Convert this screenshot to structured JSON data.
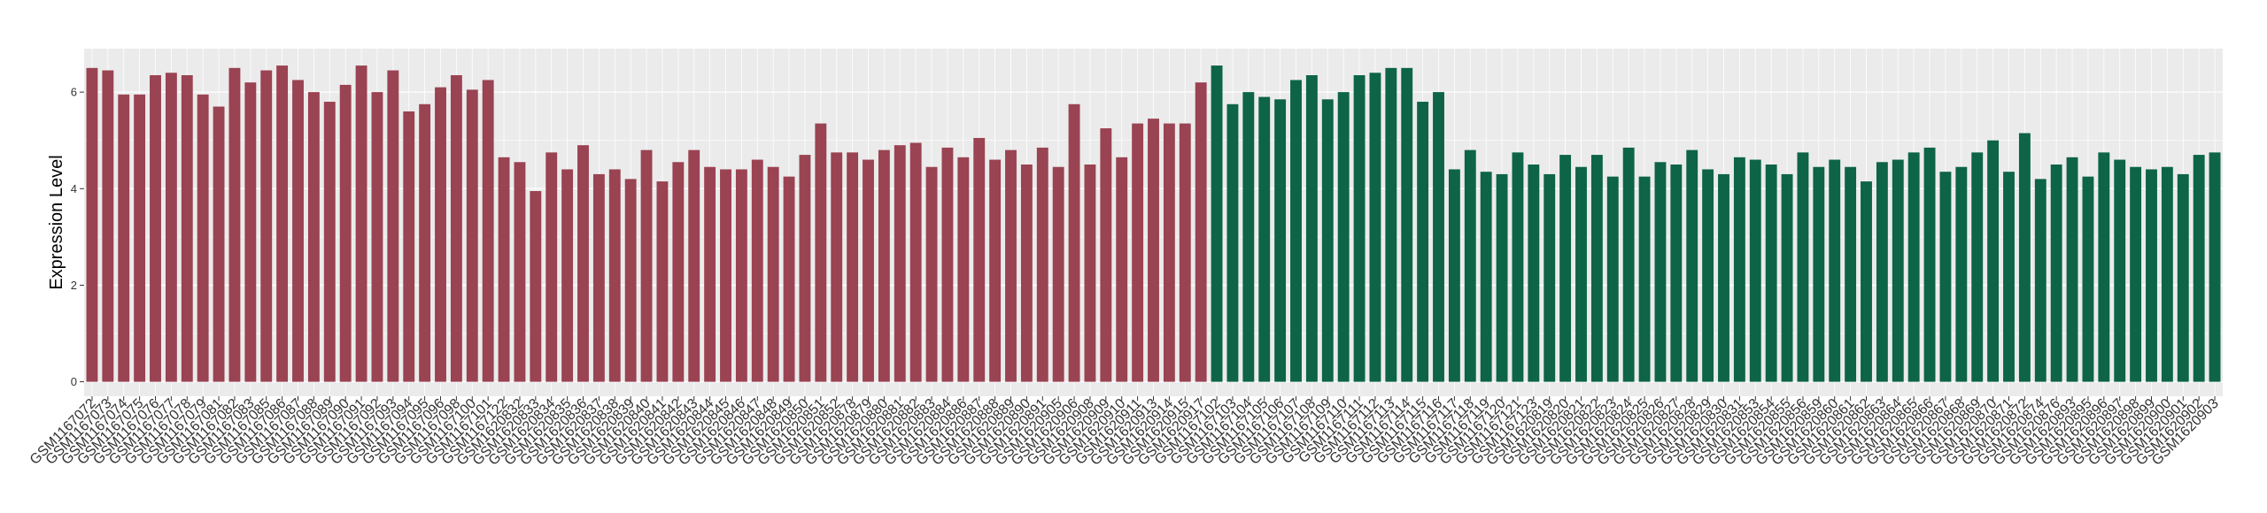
{
  "chart_data": {
    "type": "bar",
    "title": "",
    "xlabel": "",
    "ylabel": "Expression Level",
    "ylim": [
      -0.3,
      6.9
    ],
    "yticks": [
      0,
      2,
      4,
      6
    ],
    "grid": true,
    "legend": "none",
    "colors": {
      "red": "#9A4352",
      "green": "#0D6446",
      "panel": "#EBEBEB",
      "grid": "#FFFFFF"
    },
    "categories": [
      "GSM1167072",
      "GSM1167073",
      "GSM1167074",
      "GSM1167075",
      "GSM1167076",
      "GSM1167077",
      "GSM1167078",
      "GSM1167079",
      "GSM1167081",
      "GSM1167082",
      "GSM1167083",
      "GSM1167085",
      "GSM1167086",
      "GSM1167087",
      "GSM1167088",
      "GSM1167089",
      "GSM1167090",
      "GSM1167091",
      "GSM1167092",
      "GSM1167093",
      "GSM1167094",
      "GSM1167095",
      "GSM1167096",
      "GSM1167098",
      "GSM1167100",
      "GSM1167101",
      "GSM1167122",
      "GSM1620832",
      "GSM1620833",
      "GSM1620834",
      "GSM1620835",
      "GSM1620836",
      "GSM1620837",
      "GSM1620838",
      "GSM1620839",
      "GSM1620840",
      "GSM1620841",
      "GSM1620842",
      "GSM1620843",
      "GSM1620844",
      "GSM1620845",
      "GSM1620846",
      "GSM1620847",
      "GSM1620848",
      "GSM1620849",
      "GSM1620850",
      "GSM1620851",
      "GSM1620852",
      "GSM1620878",
      "GSM1620879",
      "GSM1620880",
      "GSM1620881",
      "GSM1620882",
      "GSM1620883",
      "GSM1620884",
      "GSM1620886",
      "GSM1620887",
      "GSM1620888",
      "GSM1620889",
      "GSM1620890",
      "GSM1620891",
      "GSM1620905",
      "GSM1620906",
      "GSM1620908",
      "GSM1620909",
      "GSM1620910",
      "GSM1620911",
      "GSM1620913",
      "GSM1620914",
      "GSM1620915",
      "GSM1620917",
      "GSM1167102",
      "GSM1167103",
      "GSM1167104",
      "GSM1167105",
      "GSM1167106",
      "GSM1167107",
      "GSM1167108",
      "GSM1167109",
      "GSM1167110",
      "GSM1167111",
      "GSM1167112",
      "GSM1167113",
      "GSM1167114",
      "GSM1167115",
      "GSM1167116",
      "GSM1167117",
      "GSM1167118",
      "GSM1167119",
      "GSM1167120",
      "GSM1167121",
      "GSM1167123",
      "GSM1620819",
      "GSM1620820",
      "GSM1620821",
      "GSM1620822",
      "GSM1620823",
      "GSM1620824",
      "GSM1620825",
      "GSM1620826",
      "GSM1620827",
      "GSM1620828",
      "GSM1620829",
      "GSM1620830",
      "GSM1620831",
      "GSM1620853",
      "GSM1620854",
      "GSM1620855",
      "GSM1620856",
      "GSM1620859",
      "GSM1620860",
      "GSM1620861",
      "GSM1620862",
      "GSM1620863",
      "GSM1620864",
      "GSM1620865",
      "GSM1620866",
      "GSM1620867",
      "GSM1620868",
      "GSM1620869",
      "GSM1620870",
      "GSM1620871",
      "GSM1620872",
      "GSM1620874",
      "GSM1620876",
      "GSM1620893",
      "GSM1620895",
      "GSM1620896",
      "GSM1620897",
      "GSM1620898",
      "GSM1620899",
      "GSM1620900",
      "GSM1620901",
      "GSM1620902",
      "GSM1620903"
    ],
    "values": [
      6.5,
      6.45,
      5.95,
      5.95,
      6.35,
      6.4,
      6.35,
      5.95,
      5.7,
      6.5,
      6.2,
      6.45,
      6.55,
      6.25,
      6.0,
      5.8,
      6.15,
      6.55,
      6.0,
      6.45,
      5.6,
      5.75,
      6.1,
      6.35,
      6.05,
      6.25,
      4.65,
      4.55,
      3.95,
      4.75,
      4.4,
      4.9,
      4.3,
      4.4,
      4.2,
      4.8,
      4.15,
      4.55,
      4.8,
      4.45,
      4.4,
      4.4,
      4.6,
      4.45,
      4.25,
      4.7,
      5.35,
      4.75,
      4.75,
      4.6,
      4.8,
      4.9,
      4.95,
      4.45,
      4.85,
      4.65,
      5.05,
      4.6,
      4.8,
      4.5,
      4.85,
      4.45,
      5.75,
      4.5,
      5.25,
      4.65,
      5.35,
      5.45,
      5.35,
      5.35,
      6.2,
      6.55,
      5.75,
      6.0,
      5.9,
      5.85,
      6.25,
      6.35,
      5.85,
      6.0,
      6.35,
      6.4,
      6.5,
      6.5,
      5.8,
      6.0,
      4.4,
      4.8,
      4.35,
      4.3,
      4.75,
      4.5,
      4.3,
      4.7,
      4.45,
      4.7,
      4.25,
      4.85,
      4.25,
      4.55,
      4.5,
      4.8,
      4.4,
      4.3,
      4.65,
      4.6,
      4.5,
      4.3,
      4.75,
      4.45,
      4.6,
      4.45,
      4.15,
      4.55,
      4.6,
      4.75,
      4.85,
      4.35,
      4.45,
      4.75,
      5.0,
      4.35,
      5.15,
      4.2,
      4.5,
      4.65,
      4.25,
      4.75,
      4.6,
      4.45,
      4.4,
      4.45,
      4.3,
      4.7,
      4.75
    ],
    "group_split_index": 71
  }
}
